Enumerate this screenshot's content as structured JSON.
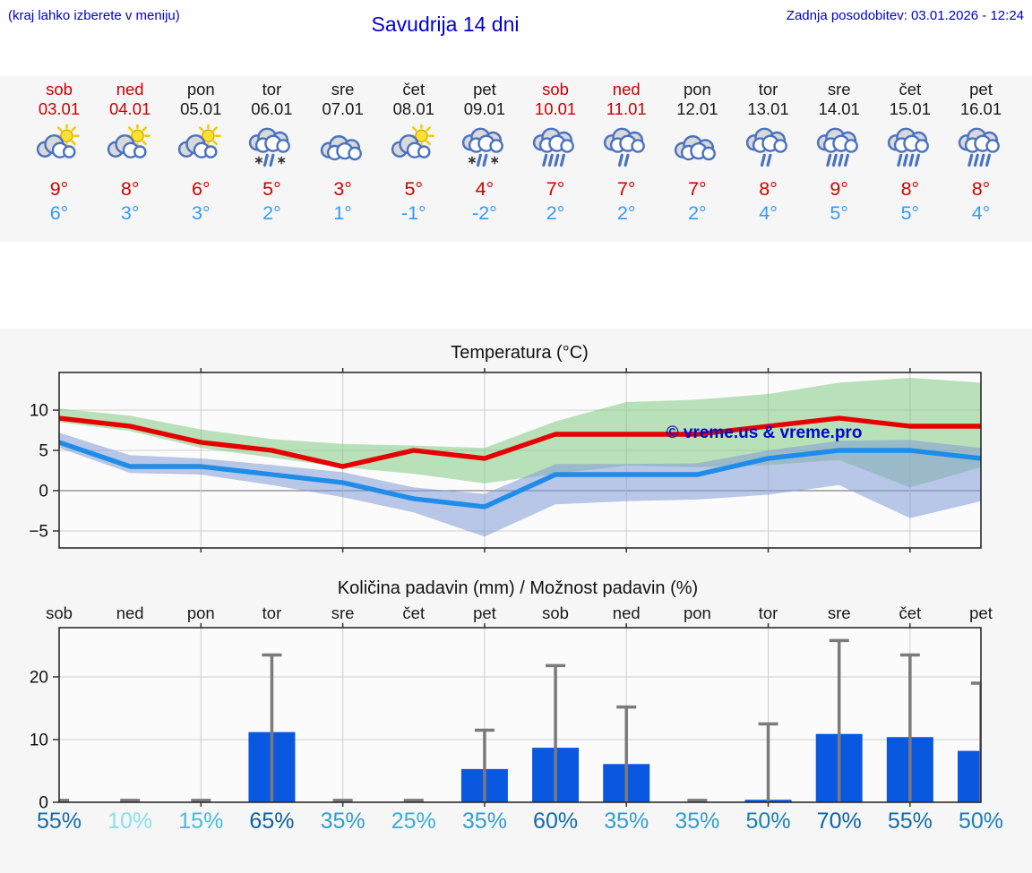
{
  "header": {
    "hint": "(kraj lahko izberete v meniju)",
    "title": "Savudrija 14 dni",
    "last_updated": "Zadnja posodobitev: 03.01.2026 - 12:24"
  },
  "colors": {
    "header_blue": "#0000d0",
    "weekend_red": "#cc0000",
    "weekday_black": "#1a1a1a",
    "temp_max_red": "#d40000",
    "temp_min_blue": "#3399ff",
    "max_line_red": "#e60000",
    "min_line_blue": "#1e8ce8",
    "max_band_green": "rgba(120,200,120,0.5)",
    "min_band_blue": "rgba(130,155,215,0.55)",
    "bar_blue": "#0a58e0",
    "whisker_gray": "#7a7a7a",
    "watermark_blue": "#0008cc"
  },
  "forecast": {
    "days": [
      {
        "name": "sob",
        "date": "03.01",
        "weekend": true,
        "icon": "partly-sunny-icon",
        "temp_max": "9°",
        "temp_min": "6°"
      },
      {
        "name": "ned",
        "date": "04.01",
        "weekend": true,
        "icon": "partly-sunny-icon",
        "temp_max": "8°",
        "temp_min": "3°"
      },
      {
        "name": "pon",
        "date": "05.01",
        "weekend": false,
        "icon": "partly-sunny-icon",
        "temp_max": "6°",
        "temp_min": "3°"
      },
      {
        "name": "tor",
        "date": "06.01",
        "weekend": false,
        "icon": "sleet-icon",
        "temp_max": "5°",
        "temp_min": "2°"
      },
      {
        "name": "sre",
        "date": "07.01",
        "weekend": false,
        "icon": "cloudy-icon",
        "temp_max": "3°",
        "temp_min": "1°"
      },
      {
        "name": "čet",
        "date": "08.01",
        "weekend": false,
        "icon": "partly-sunny-icon",
        "temp_max": "5°",
        "temp_min": "-1°"
      },
      {
        "name": "pet",
        "date": "09.01",
        "weekend": false,
        "icon": "sleet-icon",
        "temp_max": "4°",
        "temp_min": "-2°"
      },
      {
        "name": "sob",
        "date": "10.01",
        "weekend": true,
        "icon": "rain-icon",
        "temp_max": "7°",
        "temp_min": "2°"
      },
      {
        "name": "ned",
        "date": "11.01",
        "weekend": true,
        "icon": "light-rain-icon",
        "temp_max": "7°",
        "temp_min": "2°"
      },
      {
        "name": "pon",
        "date": "12.01",
        "weekend": false,
        "icon": "cloudy-icon",
        "temp_max": "7°",
        "temp_min": "2°"
      },
      {
        "name": "tor",
        "date": "13.01",
        "weekend": false,
        "icon": "light-rain-icon",
        "temp_max": "8°",
        "temp_min": "4°"
      },
      {
        "name": "sre",
        "date": "14.01",
        "weekend": false,
        "icon": "rain-icon",
        "temp_max": "9°",
        "temp_min": "5°"
      },
      {
        "name": "čet",
        "date": "15.01",
        "weekend": false,
        "icon": "rain-icon",
        "temp_max": "8°",
        "temp_min": "5°"
      },
      {
        "name": "pet",
        "date": "16.01",
        "weekend": false,
        "icon": "rain-icon",
        "temp_max": "8°",
        "temp_min": "4°"
      }
    ]
  },
  "chart_data": [
    {
      "type": "line",
      "title": "Temperatura (°C)",
      "categories": [
        "03.01",
        "04.01",
        "05.01",
        "06.01",
        "07.01",
        "08.01",
        "09.01",
        "10.01",
        "11.01",
        "12.01",
        "13.01",
        "14.01",
        "15.01",
        "16.01"
      ],
      "yticks": [
        10,
        5,
        0,
        -5
      ],
      "ylim": [
        -7.2,
        14.6
      ],
      "grid": true,
      "watermark": "© vreme.us & vreme.pro",
      "series": [
        {
          "name": "max temperature",
          "color": "#e60000",
          "values": [
            9,
            8,
            6,
            5,
            3,
            5,
            4,
            7,
            7,
            7,
            8,
            9,
            8,
            8
          ]
        },
        {
          "name": "min temperature",
          "color": "#1e8ce8",
          "values": [
            6,
            3,
            3,
            2,
            1,
            -1,
            -2,
            2,
            2,
            2,
            4,
            5,
            5,
            4
          ]
        }
      ],
      "bands": [
        {
          "name": "max temperature range",
          "color": "rgba(120,200,120,0.5)",
          "upper": [
            10.2,
            9.3,
            7.6,
            6.4,
            5.8,
            5.6,
            5.3,
            8.6,
            11.0,
            11.3,
            12.0,
            13.4,
            14.0,
            13.4
          ],
          "lower": [
            8.5,
            7.4,
            5.3,
            4.1,
            2.9,
            2.1,
            0.9,
            2.1,
            3.1,
            2.9,
            3.2,
            3.8,
            0.4,
            2.9
          ]
        },
        {
          "name": "min temperature range",
          "color": "rgba(130,155,215,0.55)",
          "upper": [
            7.2,
            4.4,
            4.0,
            3.2,
            2.3,
            0.4,
            -0.4,
            3.3,
            3.3,
            3.4,
            5.0,
            6.2,
            6.3,
            5.3
          ],
          "lower": [
            5.3,
            2.2,
            2.0,
            0.7,
            -0.8,
            -2.7,
            -5.7,
            -1.7,
            -1.3,
            -1.1,
            -0.5,
            0.7,
            -3.4,
            -1.3
          ]
        }
      ]
    },
    {
      "type": "bar",
      "title": "Količina padavin (mm) / Možnost padavin (%)",
      "categories": [
        "sob",
        "ned",
        "pon",
        "tor",
        "sre",
        "čet",
        "pet",
        "sob",
        "ned",
        "pon",
        "tor",
        "sre",
        "čet",
        "pet"
      ],
      "values_mm": [
        0,
        0,
        0,
        11.2,
        0,
        0,
        5.3,
        8.7,
        6.1,
        0,
        0.4,
        10.9,
        10.4,
        8.2
      ],
      "whisker_max_mm": [
        0.3,
        0.3,
        0.3,
        23.5,
        0.3,
        0.3,
        11.5,
        21.8,
        15.2,
        0.3,
        12.5,
        25.8,
        23.5,
        19.0
      ],
      "probability_pct": [
        "55%",
        "10%",
        "15%",
        "65%",
        "35%",
        "25%",
        "35%",
        "60%",
        "35%",
        "35%",
        "50%",
        "70%",
        "55%",
        "50%"
      ],
      "probability_colors": [
        "#156ca9",
        "#8adeee",
        "#45bcdc",
        "#0d5fa4",
        "#2f9ecf",
        "#3dadd4",
        "#2f9ecf",
        "#116aac",
        "#2f9ecf",
        "#2f9ecf",
        "#1b7db8",
        "#0d63a6",
        "#156ca9",
        "#1b7db8"
      ],
      "yticks": [
        0,
        10,
        20
      ],
      "ylim": [
        0,
        27.8
      ],
      "bar_color": "#0a58e0",
      "grid": true
    }
  ]
}
